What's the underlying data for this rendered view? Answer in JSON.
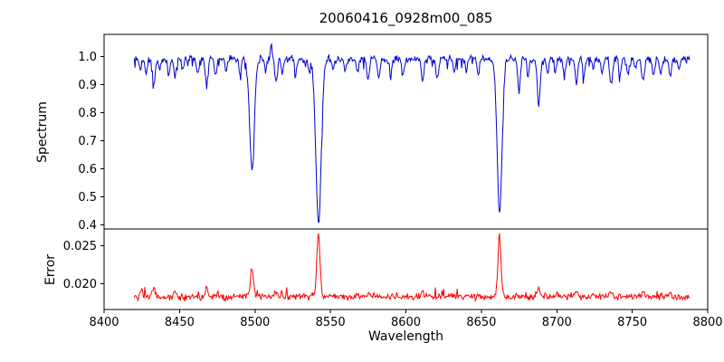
{
  "figure": {
    "background": "#ffffff",
    "axis_color": "#000000"
  },
  "chart_data": {
    "type": "line",
    "title": "20060416_0928m00_085",
    "xlabel": "Wavelength",
    "grid": false,
    "legend": null,
    "xlim": [
      8400,
      8800
    ],
    "xticks": [
      8400,
      8450,
      8500,
      8550,
      8600,
      8650,
      8700,
      8750,
      8800
    ],
    "x_data_range": [
      8420,
      8788
    ],
    "x_step": 0.5,
    "panels": [
      {
        "name": "spectrum",
        "ylabel": "Spectrum",
        "color": "#0000cd",
        "ylim": [
          0.385,
          1.08
        ],
        "yticks": [
          0.4,
          0.5,
          0.6,
          0.7,
          0.8,
          0.9,
          1.0
        ],
        "ytick_decimals": 1,
        "continuum": 1.0,
        "noise_sigma": 0.006,
        "absorption_lines": {
          "columns": [
            "center_angstrom",
            "depth",
            "fwhm_angstrom"
          ],
          "rows": [
            [
              8498.0,
              0.4,
              3.6
            ],
            [
              8542.1,
              0.585,
              4.2
            ],
            [
              8662.1,
              0.545,
              3.8
            ],
            [
              8424,
              0.04,
              1.8
            ],
            [
              8428,
              0.05,
              1.8
            ],
            [
              8433,
              0.09,
              2.0
            ],
            [
              8437,
              0.04,
              1.6
            ],
            [
              8443,
              0.05,
              1.8
            ],
            [
              8447,
              0.07,
              1.8
            ],
            [
              8452,
              0.04,
              1.6
            ],
            [
              8462,
              0.05,
              1.8
            ],
            [
              8468,
              0.1,
              2.0
            ],
            [
              8474,
              0.05,
              1.8
            ],
            [
              8481,
              0.04,
              1.6
            ],
            [
              8490,
              0.05,
              1.8
            ],
            [
              8507,
              0.04,
              1.6
            ],
            [
              8514,
              0.08,
              2.0
            ],
            [
              8518,
              0.05,
              1.8
            ],
            [
              8527,
              0.05,
              1.8
            ],
            [
              8536,
              0.04,
              1.6
            ],
            [
              8552,
              0.04,
              1.6
            ],
            [
              8560,
              0.04,
              1.8
            ],
            [
              8568,
              0.05,
              1.8
            ],
            [
              8575,
              0.08,
              2.0
            ],
            [
              8582,
              0.07,
              1.8
            ],
            [
              8590,
              0.05,
              1.8
            ],
            [
              8598,
              0.06,
              1.8
            ],
            [
              8611,
              0.08,
              2.0
            ],
            [
              8621,
              0.07,
              1.8
            ],
            [
              8632,
              0.05,
              1.8
            ],
            [
              8640,
              0.04,
              1.6
            ],
            [
              8648,
              0.05,
              1.8
            ],
            [
              8675,
              0.11,
              2.0
            ],
            [
              8681,
              0.06,
              1.8
            ],
            [
              8688,
              0.17,
              2.2
            ],
            [
              8694,
              0.05,
              1.8
            ],
            [
              8699,
              0.04,
              1.6
            ],
            [
              8705,
              0.05,
              1.8
            ],
            [
              8713,
              0.09,
              2.0
            ],
            [
              8718,
              0.06,
              1.8
            ],
            [
              8724,
              0.04,
              1.6
            ],
            [
              8730,
              0.05,
              1.8
            ],
            [
              8736,
              0.09,
              2.0
            ],
            [
              8742,
              0.05,
              1.8
            ],
            [
              8747,
              0.06,
              1.8
            ],
            [
              8752,
              0.04,
              1.6
            ],
            [
              8757,
              0.08,
              2.0
            ],
            [
              8764,
              0.06,
              1.8
            ],
            [
              8769,
              0.05,
              1.8
            ],
            [
              8775,
              0.06,
              1.8
            ],
            [
              8781,
              0.04,
              1.6
            ]
          ]
        },
        "emission_spikes": {
          "columns": [
            "center_angstrom",
            "height",
            "fwhm_angstrom"
          ],
          "rows": [
            [
              8511,
              0.055,
              1.6
            ]
          ]
        }
      },
      {
        "name": "error",
        "ylabel": "Error",
        "color": "#ff0000",
        "ylim": [
          0.0166,
          0.0272
        ],
        "yticks": [
          0.02,
          0.025
        ],
        "ytick_decimals": 3,
        "baseline": 0.0183,
        "noise_sigma": 0.00022,
        "peaks": {
          "columns": [
            "center_angstrom",
            "height",
            "fwhm_angstrom"
          ],
          "rows": [
            [
              8425,
              0.0009,
              2.0
            ],
            [
              8433,
              0.0012,
              2.0
            ],
            [
              8447,
              0.0008,
              2.0
            ],
            [
              8468,
              0.0012,
              2.0
            ],
            [
              8498,
              0.0038,
              2.4
            ],
            [
              8514,
              0.0008,
              2.0
            ],
            [
              8542,
              0.0082,
              2.4
            ],
            [
              8575,
              0.0006,
              2.0
            ],
            [
              8611,
              0.0006,
              2.0
            ],
            [
              8662,
              0.0082,
              2.4
            ],
            [
              8688,
              0.0012,
              2.0
            ],
            [
              8713,
              0.0006,
              2.0
            ],
            [
              8736,
              0.0007,
              2.0
            ],
            [
              8757,
              0.0008,
              2.0
            ],
            [
              8775,
              0.0006,
              2.0
            ]
          ]
        }
      }
    ]
  }
}
